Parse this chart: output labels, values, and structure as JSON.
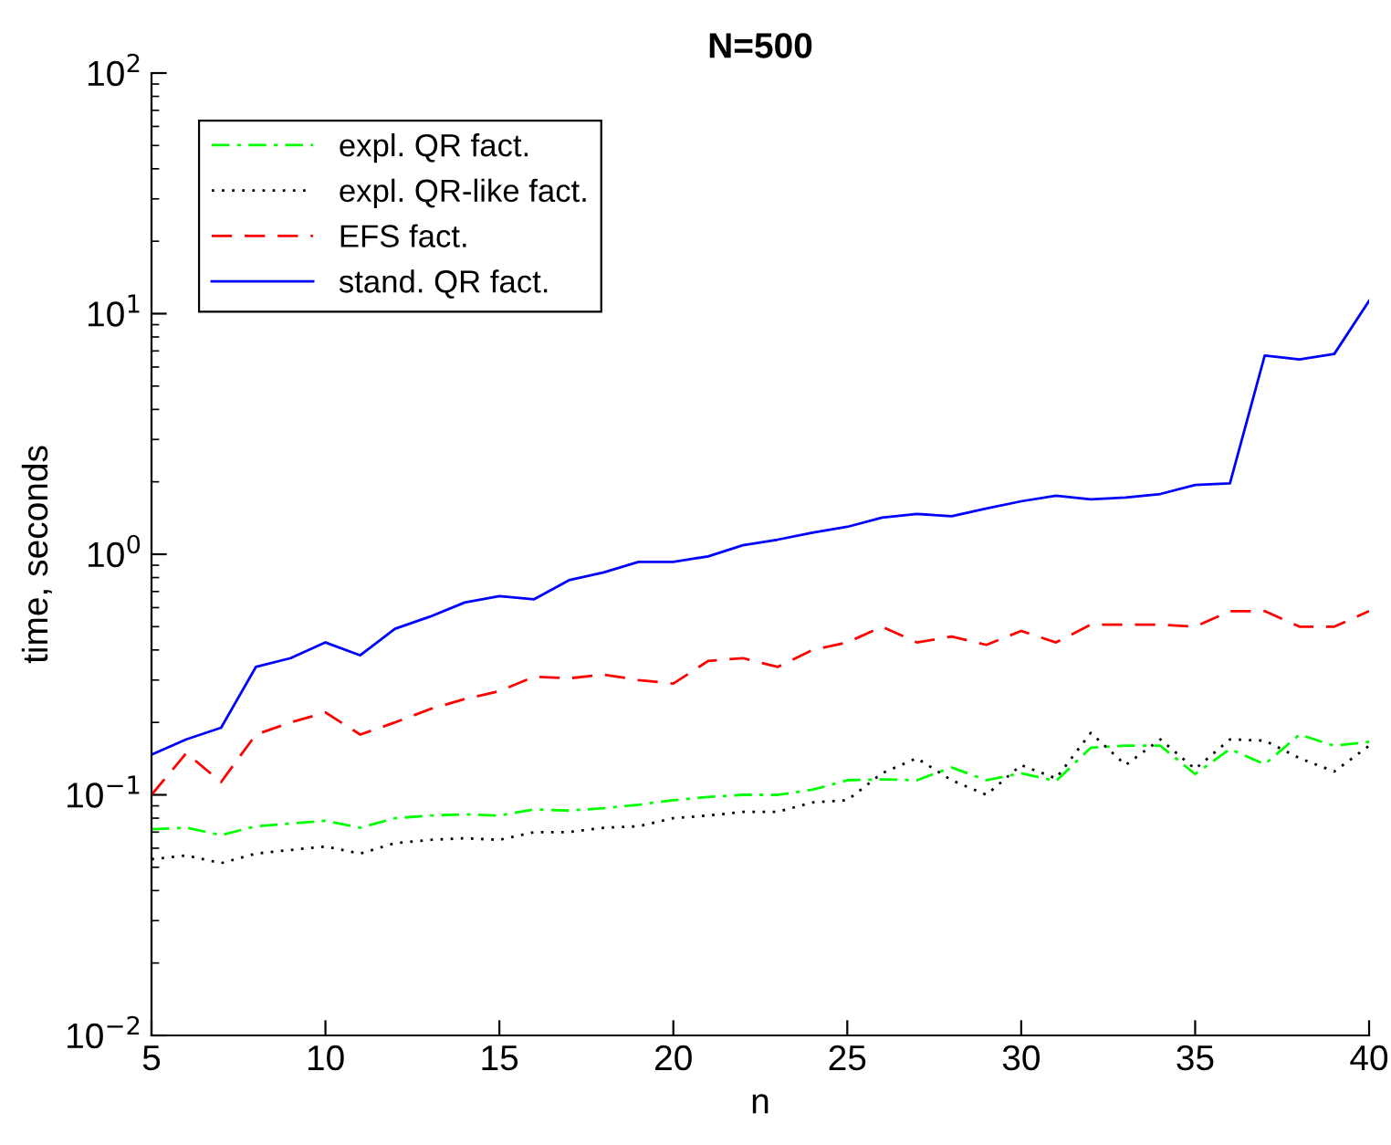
{
  "chart_data": {
    "type": "line",
    "title": "N=500",
    "xlabel": "n",
    "ylabel": "time, seconds",
    "log": "y",
    "x": [
      5,
      6,
      7,
      8,
      9,
      10,
      11,
      12,
      13,
      14,
      15,
      16,
      17,
      18,
      19,
      20,
      21,
      22,
      23,
      24,
      25,
      26,
      27,
      28,
      29,
      30,
      31,
      32,
      33,
      34,
      35,
      36,
      37,
      38,
      39,
      40
    ],
    "xlim": [
      5,
      40
    ],
    "xticks": [
      5,
      10,
      15,
      20,
      25,
      30,
      35,
      40
    ],
    "ylim": [
      0.01,
      100
    ],
    "yticks": [
      {
        "value": 0.01,
        "label": "10$^{−2}$"
      },
      {
        "value": 0.1,
        "label": "10$^{−1}$"
      },
      {
        "value": 1,
        "label": "10$^{0}$"
      },
      {
        "value": 10,
        "label": "10$^{1}$"
      },
      {
        "value": 100,
        "label": "10$^{2}$"
      }
    ],
    "legend": "top left",
    "grid": false,
    "series": [
      {
        "name": "expl. QR fact.",
        "color": "#00ff00",
        "line_style": "dashdot",
        "values": [
          0.072,
          0.073,
          0.068,
          0.074,
          0.076,
          0.078,
          0.073,
          0.08,
          0.082,
          0.083,
          0.082,
          0.087,
          0.086,
          0.088,
          0.091,
          0.095,
          0.098,
          0.1,
          0.1,
          0.105,
          0.115,
          0.116,
          0.115,
          0.13,
          0.115,
          0.123,
          0.114,
          0.157,
          0.16,
          0.16,
          0.122,
          0.155,
          0.134,
          0.178,
          0.16,
          0.166
        ]
      },
      {
        "name": "expl. QR-like fact.",
        "color": "#000000",
        "line_style": "dotted",
        "values": [
          0.054,
          0.056,
          0.052,
          0.057,
          0.059,
          0.061,
          0.057,
          0.063,
          0.065,
          0.066,
          0.065,
          0.07,
          0.07,
          0.073,
          0.074,
          0.08,
          0.082,
          0.085,
          0.085,
          0.093,
          0.095,
          0.123,
          0.142,
          0.115,
          0.1,
          0.133,
          0.117,
          0.181,
          0.133,
          0.17,
          0.128,
          0.17,
          0.168,
          0.142,
          0.125,
          0.16
        ]
      },
      {
        "name": "EFS fact.",
        "color": "#ff0000",
        "line_style": "dashed",
        "values": [
          0.1,
          0.149,
          0.113,
          0.178,
          0.2,
          0.22,
          0.178,
          0.2,
          0.227,
          0.25,
          0.27,
          0.31,
          0.305,
          0.316,
          0.3,
          0.29,
          0.36,
          0.37,
          0.34,
          0.4,
          0.43,
          0.5,
          0.43,
          0.455,
          0.42,
          0.48,
          0.43,
          0.51,
          0.51,
          0.51,
          0.5,
          0.58,
          0.58,
          0.5,
          0.5,
          0.58
        ]
      },
      {
        "name": "stand. QR fact.",
        "color": "#0000ff",
        "line_style": "solid",
        "values": [
          0.147,
          0.17,
          0.19,
          0.34,
          0.37,
          0.43,
          0.38,
          0.49,
          0.55,
          0.63,
          0.67,
          0.65,
          0.78,
          0.84,
          0.93,
          0.93,
          0.98,
          1.09,
          1.15,
          1.23,
          1.3,
          1.42,
          1.47,
          1.44,
          1.55,
          1.66,
          1.75,
          1.69,
          1.72,
          1.78,
          1.94,
          1.97,
          6.7,
          6.45,
          6.8,
          11.3
        ]
      }
    ]
  }
}
